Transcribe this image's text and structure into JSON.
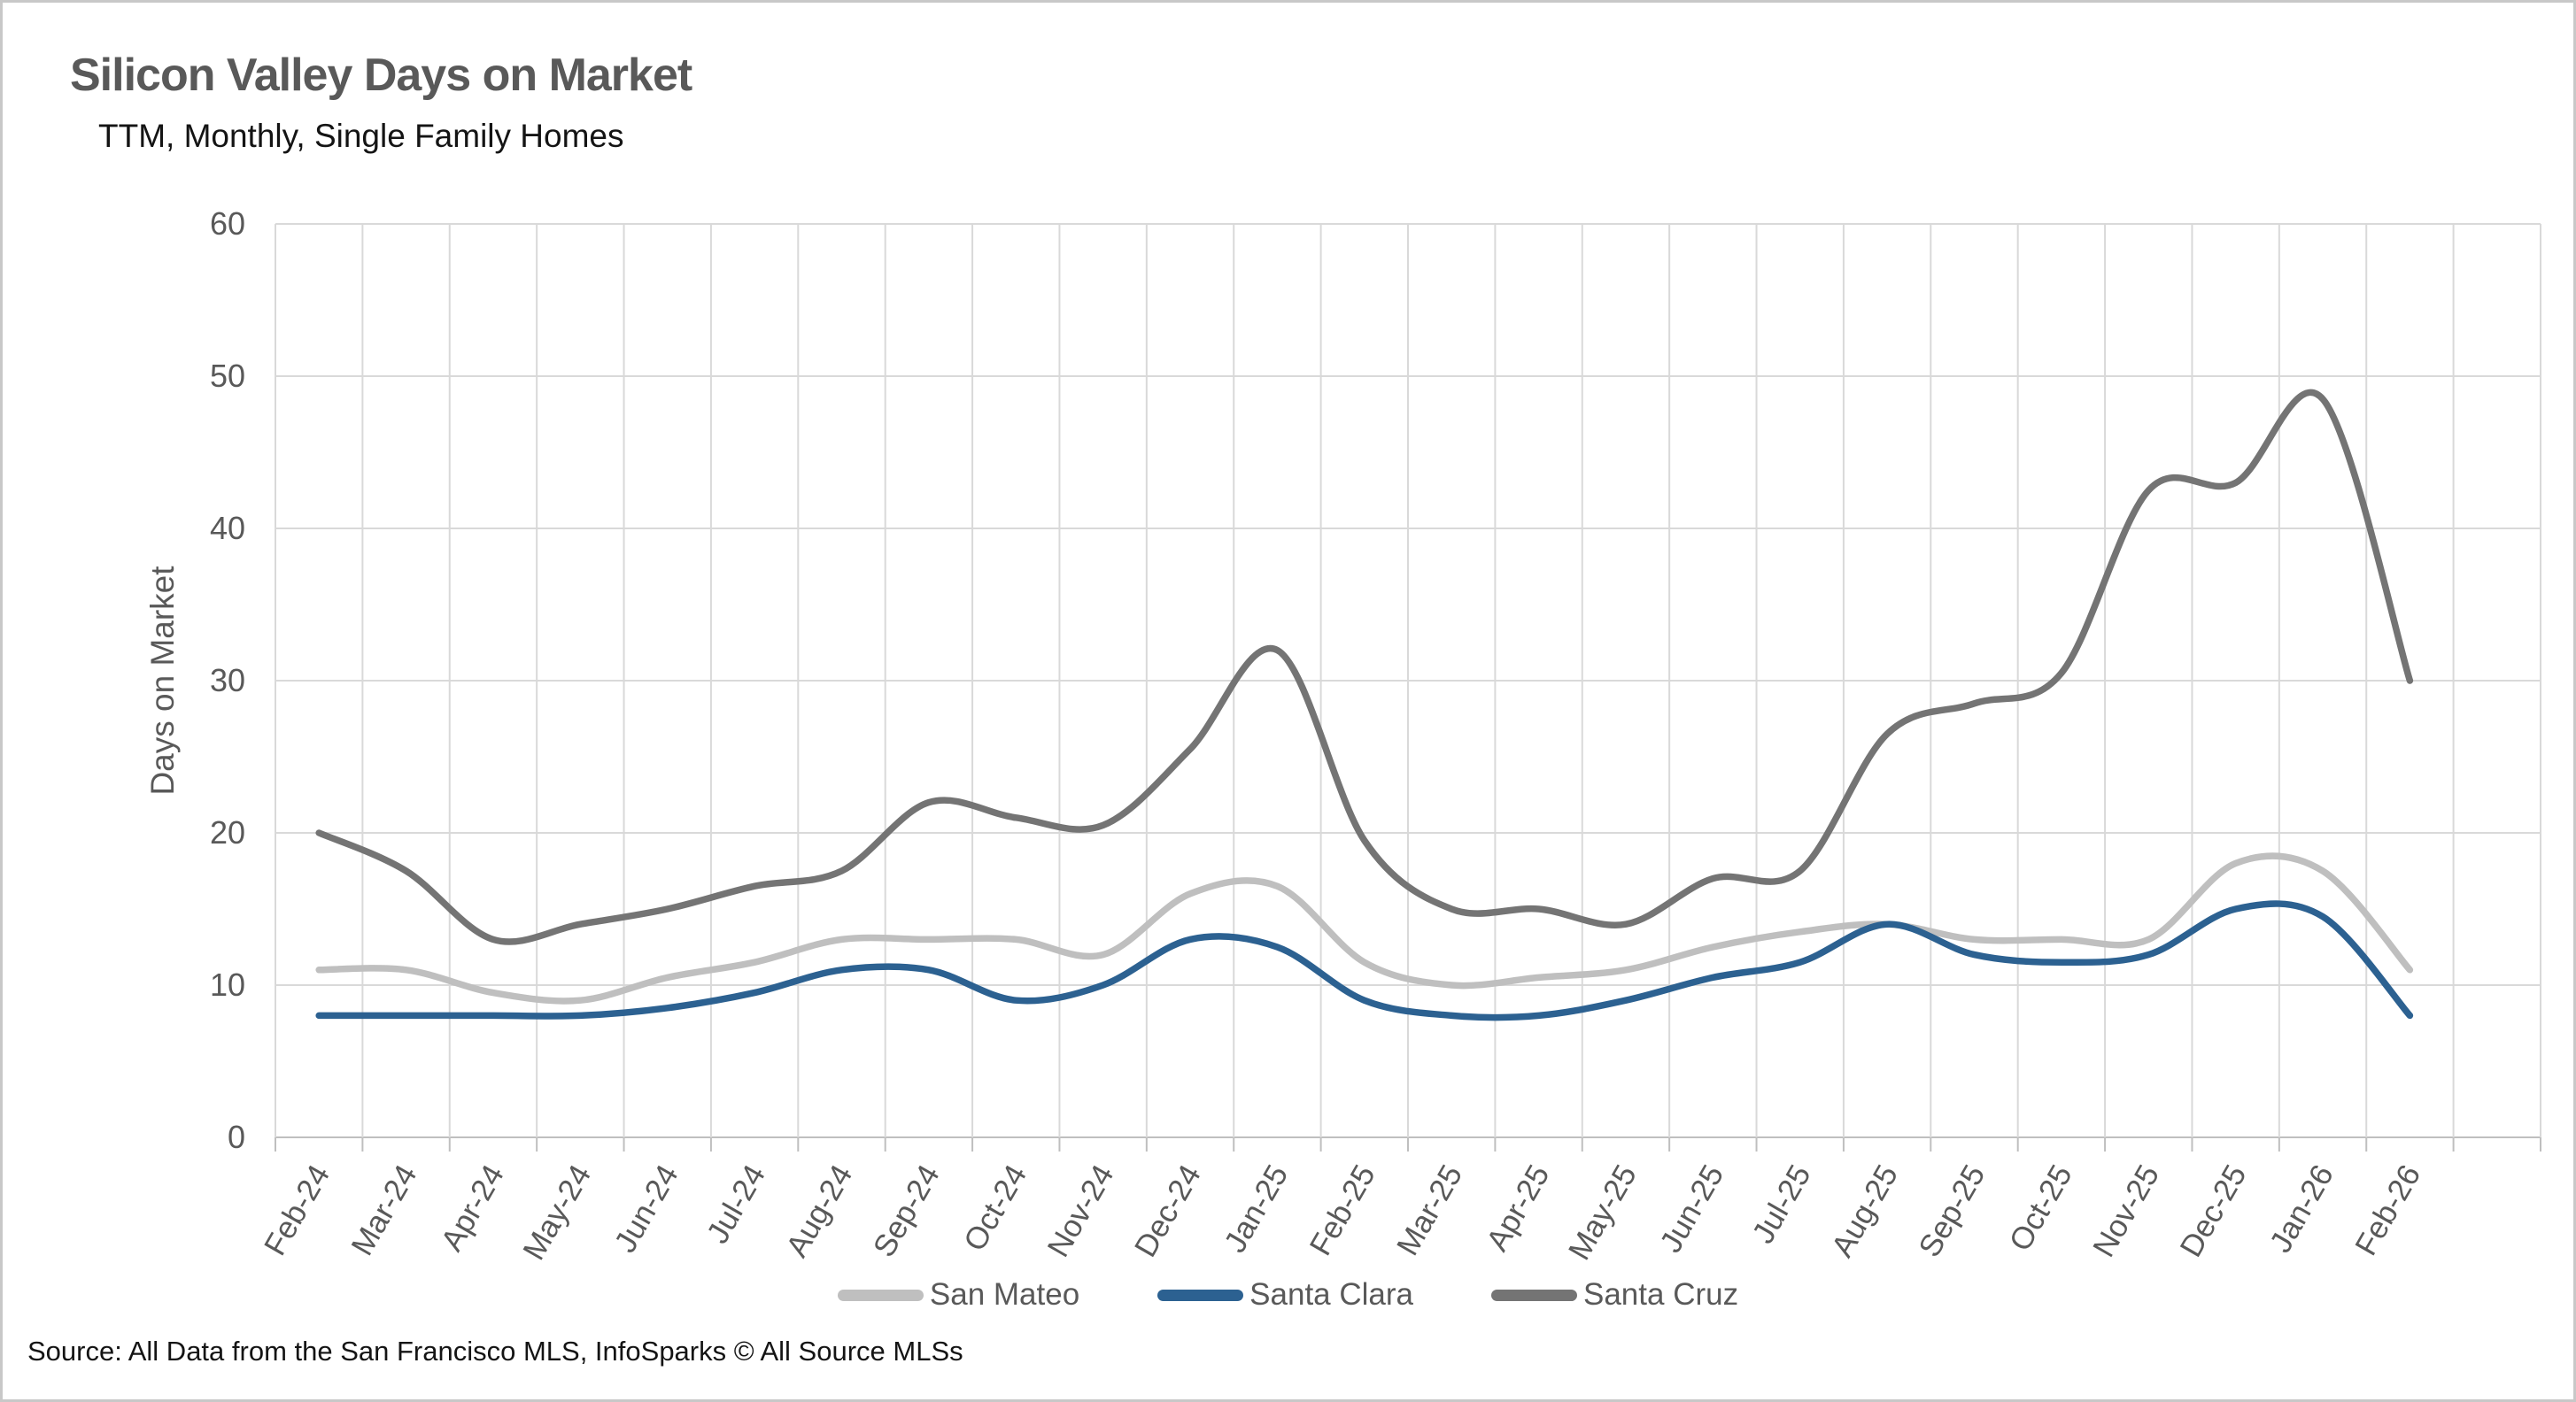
{
  "page": {
    "title": "Silicon Valley Days on Market",
    "subtitle": "TTM, Monthly, Single Family Homes",
    "source": "Source: All Data from the San Francisco MLS, InfoSparks © All Source MLSs"
  },
  "chart_data": {
    "type": "line",
    "title": "Silicon Valley Days on Market",
    "subtitle": "TTM, Monthly, Single Family Homes",
    "xlabel": "",
    "ylabel": "Days on Market",
    "ylim": [
      0,
      60
    ],
    "yticks": [
      0,
      10,
      20,
      30,
      40,
      50,
      60
    ],
    "grid": "both",
    "smooth": true,
    "legend_position": "bottom",
    "categories": [
      "Feb-24",
      "Mar-24",
      "Apr-24",
      "May-24",
      "Jun-24",
      "Jul-24",
      "Aug-24",
      "Sep-24",
      "Oct-24",
      "Nov-24",
      "Dec-24",
      "Jan-25",
      "Feb-25",
      "Mar-25",
      "Apr-25",
      "May-25",
      "Jun-25",
      "Jul-25",
      "Aug-25",
      "Sep-25",
      "Oct-25",
      "Nov-25",
      "Dec-25",
      "Jan-26",
      "Feb-26"
    ],
    "series": [
      {
        "name": "San Mateo",
        "color": "#BFBFBF",
        "values": [
          11,
          11,
          9.5,
          9,
          10.5,
          11.5,
          13,
          13,
          13,
          12,
          16,
          16.5,
          11.5,
          10,
          10.5,
          11,
          12.5,
          13.5,
          14,
          13,
          13,
          13,
          18,
          17.5,
          11
        ]
      },
      {
        "name": "Santa Clara",
        "color": "#2C6191",
        "values": [
          8,
          8,
          8,
          8,
          8.5,
          9.5,
          11,
          11,
          9,
          10,
          13,
          12.5,
          9,
          8,
          8,
          9,
          10.5,
          11.5,
          14,
          12,
          11.5,
          12,
          15,
          14.5,
          8
        ]
      },
      {
        "name": "Santa Cruz",
        "color": "#747474",
        "values": [
          20,
          17.5,
          13,
          14,
          15,
          16.5,
          17.5,
          22,
          21,
          20.5,
          25.5,
          32,
          19.5,
          15,
          15,
          14,
          17,
          17.5,
          26.5,
          28.5,
          30.5,
          42.5,
          43,
          48.5,
          30
        ]
      }
    ],
    "style": {
      "gridline": "#D9D9D9",
      "axis": "#BFBFBF",
      "tick_label_color": "#595959",
      "title_color": "#595959",
      "text_color": "#141414"
    }
  }
}
